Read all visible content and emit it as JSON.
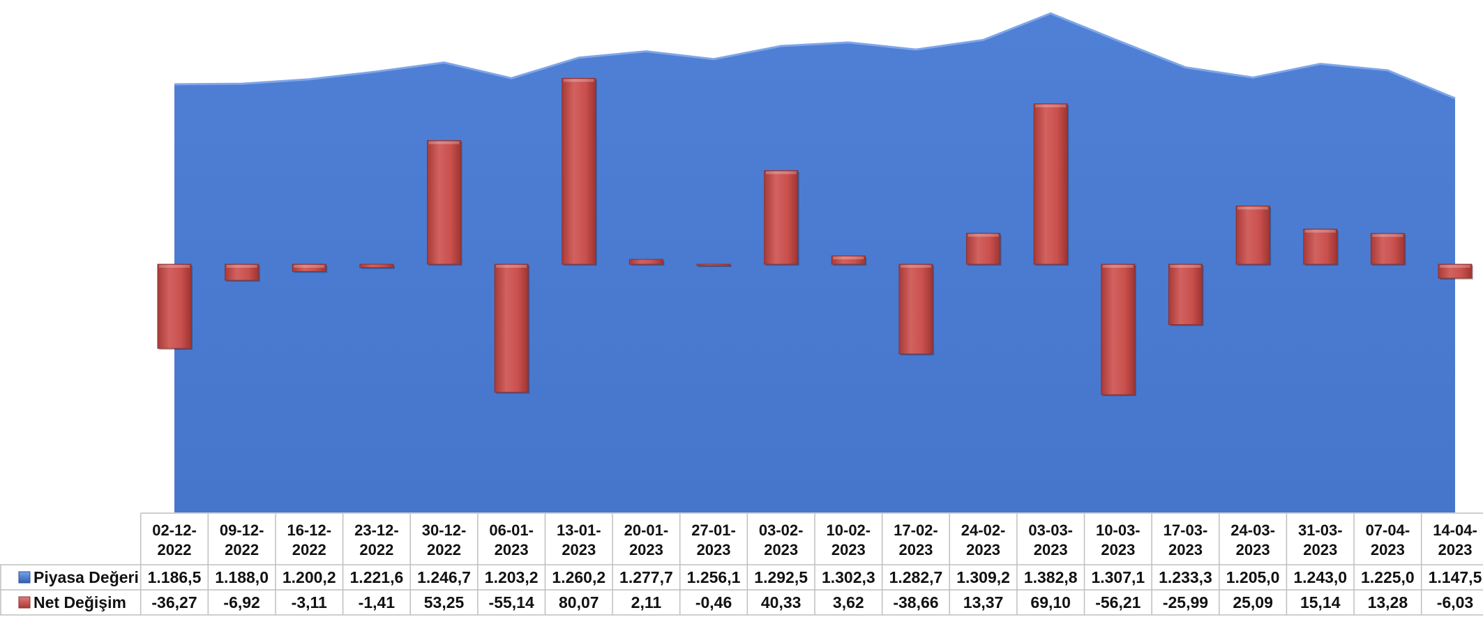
{
  "chart_data": {
    "type": "bar",
    "subtype": "combo: area (Piyasa Değeri) + column (Net Değişim) with data table",
    "categories": [
      "02-12-2022",
      "09-12-2022",
      "16-12-2022",
      "23-12-2022",
      "30-12-2022",
      "06-01-2023",
      "13-01-2023",
      "20-01-2023",
      "27-01-2023",
      "03-02-2023",
      "10-02-2023",
      "17-02-2023",
      "24-02-2023",
      "03-03-2023",
      "10-03-2023",
      "17-03-2023",
      "24-03-2023",
      "31-03-2023",
      "07-04-2023",
      "14-04-2023"
    ],
    "category_lines": [
      [
        "02-12-",
        "2022"
      ],
      [
        "09-12-",
        "2022"
      ],
      [
        "16-12-",
        "2022"
      ],
      [
        "23-12-",
        "2022"
      ],
      [
        "30-12-",
        "2022"
      ],
      [
        "06-01-",
        "2023"
      ],
      [
        "13-01-",
        "2023"
      ],
      [
        "20-01-",
        "2023"
      ],
      [
        "27-01-",
        "2023"
      ],
      [
        "03-02-",
        "2023"
      ],
      [
        "10-02-",
        "2023"
      ],
      [
        "17-02-",
        "2023"
      ],
      [
        "24-02-",
        "2023"
      ],
      [
        "03-03-",
        "2023"
      ],
      [
        "10-03-",
        "2023"
      ],
      [
        "17-03-",
        "2023"
      ],
      [
        "24-03-",
        "2023"
      ],
      [
        "31-03-",
        "2023"
      ],
      [
        "07-04-",
        "2023"
      ],
      [
        "14-04-",
        "2023"
      ]
    ],
    "series": [
      {
        "name": "Piyasa Değeri",
        "type": "area",
        "color": "#4a7bd1",
        "values": [
          1186.5,
          1188.0,
          1200.2,
          1221.6,
          1246.7,
          1203.2,
          1260.2,
          1277.7,
          1256.1,
          1292.5,
          1302.3,
          1282.7,
          1309.2,
          1382.8,
          1307.1,
          1233.3,
          1205.0,
          1243.0,
          1225.0,
          1147.5
        ],
        "labels": [
          "1.186,5",
          "1.188,0",
          "1.200,2",
          "1.221,6",
          "1.246,7",
          "1.203,2",
          "1.260,2",
          "1.277,7",
          "1.256,1",
          "1.292,5",
          "1.302,3",
          "1.282,7",
          "1.309,2",
          "1.382,8",
          "1.307,1",
          "1.233,3",
          "1.205,0",
          "1.243,0",
          "1.225,0",
          "1.147,5"
        ]
      },
      {
        "name": "Net Değişim",
        "type": "bar",
        "color": "#c9504d",
        "values": [
          -36.27,
          -6.92,
          -3.11,
          -1.41,
          53.25,
          -55.14,
          80.07,
          2.11,
          -0.46,
          40.33,
          3.62,
          -38.66,
          13.37,
          69.1,
          -56.21,
          -25.99,
          25.09,
          15.14,
          13.28,
          -6.03
        ],
        "labels": [
          "-36,27",
          "-6,92",
          "-3,11",
          "-1,41",
          "53,25",
          "-55,14",
          "80,07",
          "2,11",
          "-0,46",
          "40,33",
          "3,62",
          "-38,66",
          "13,37",
          "69,10",
          "-56,21",
          "-25,99",
          "25,09",
          "15,14",
          "13,28",
          "-6,03"
        ]
      }
    ],
    "area_ylim": [
      0,
      1420
    ],
    "bar_ylim": [
      -80,
      80
    ],
    "grid": false,
    "legend": "data table",
    "title": "",
    "xlabel": "",
    "ylabel": ""
  }
}
